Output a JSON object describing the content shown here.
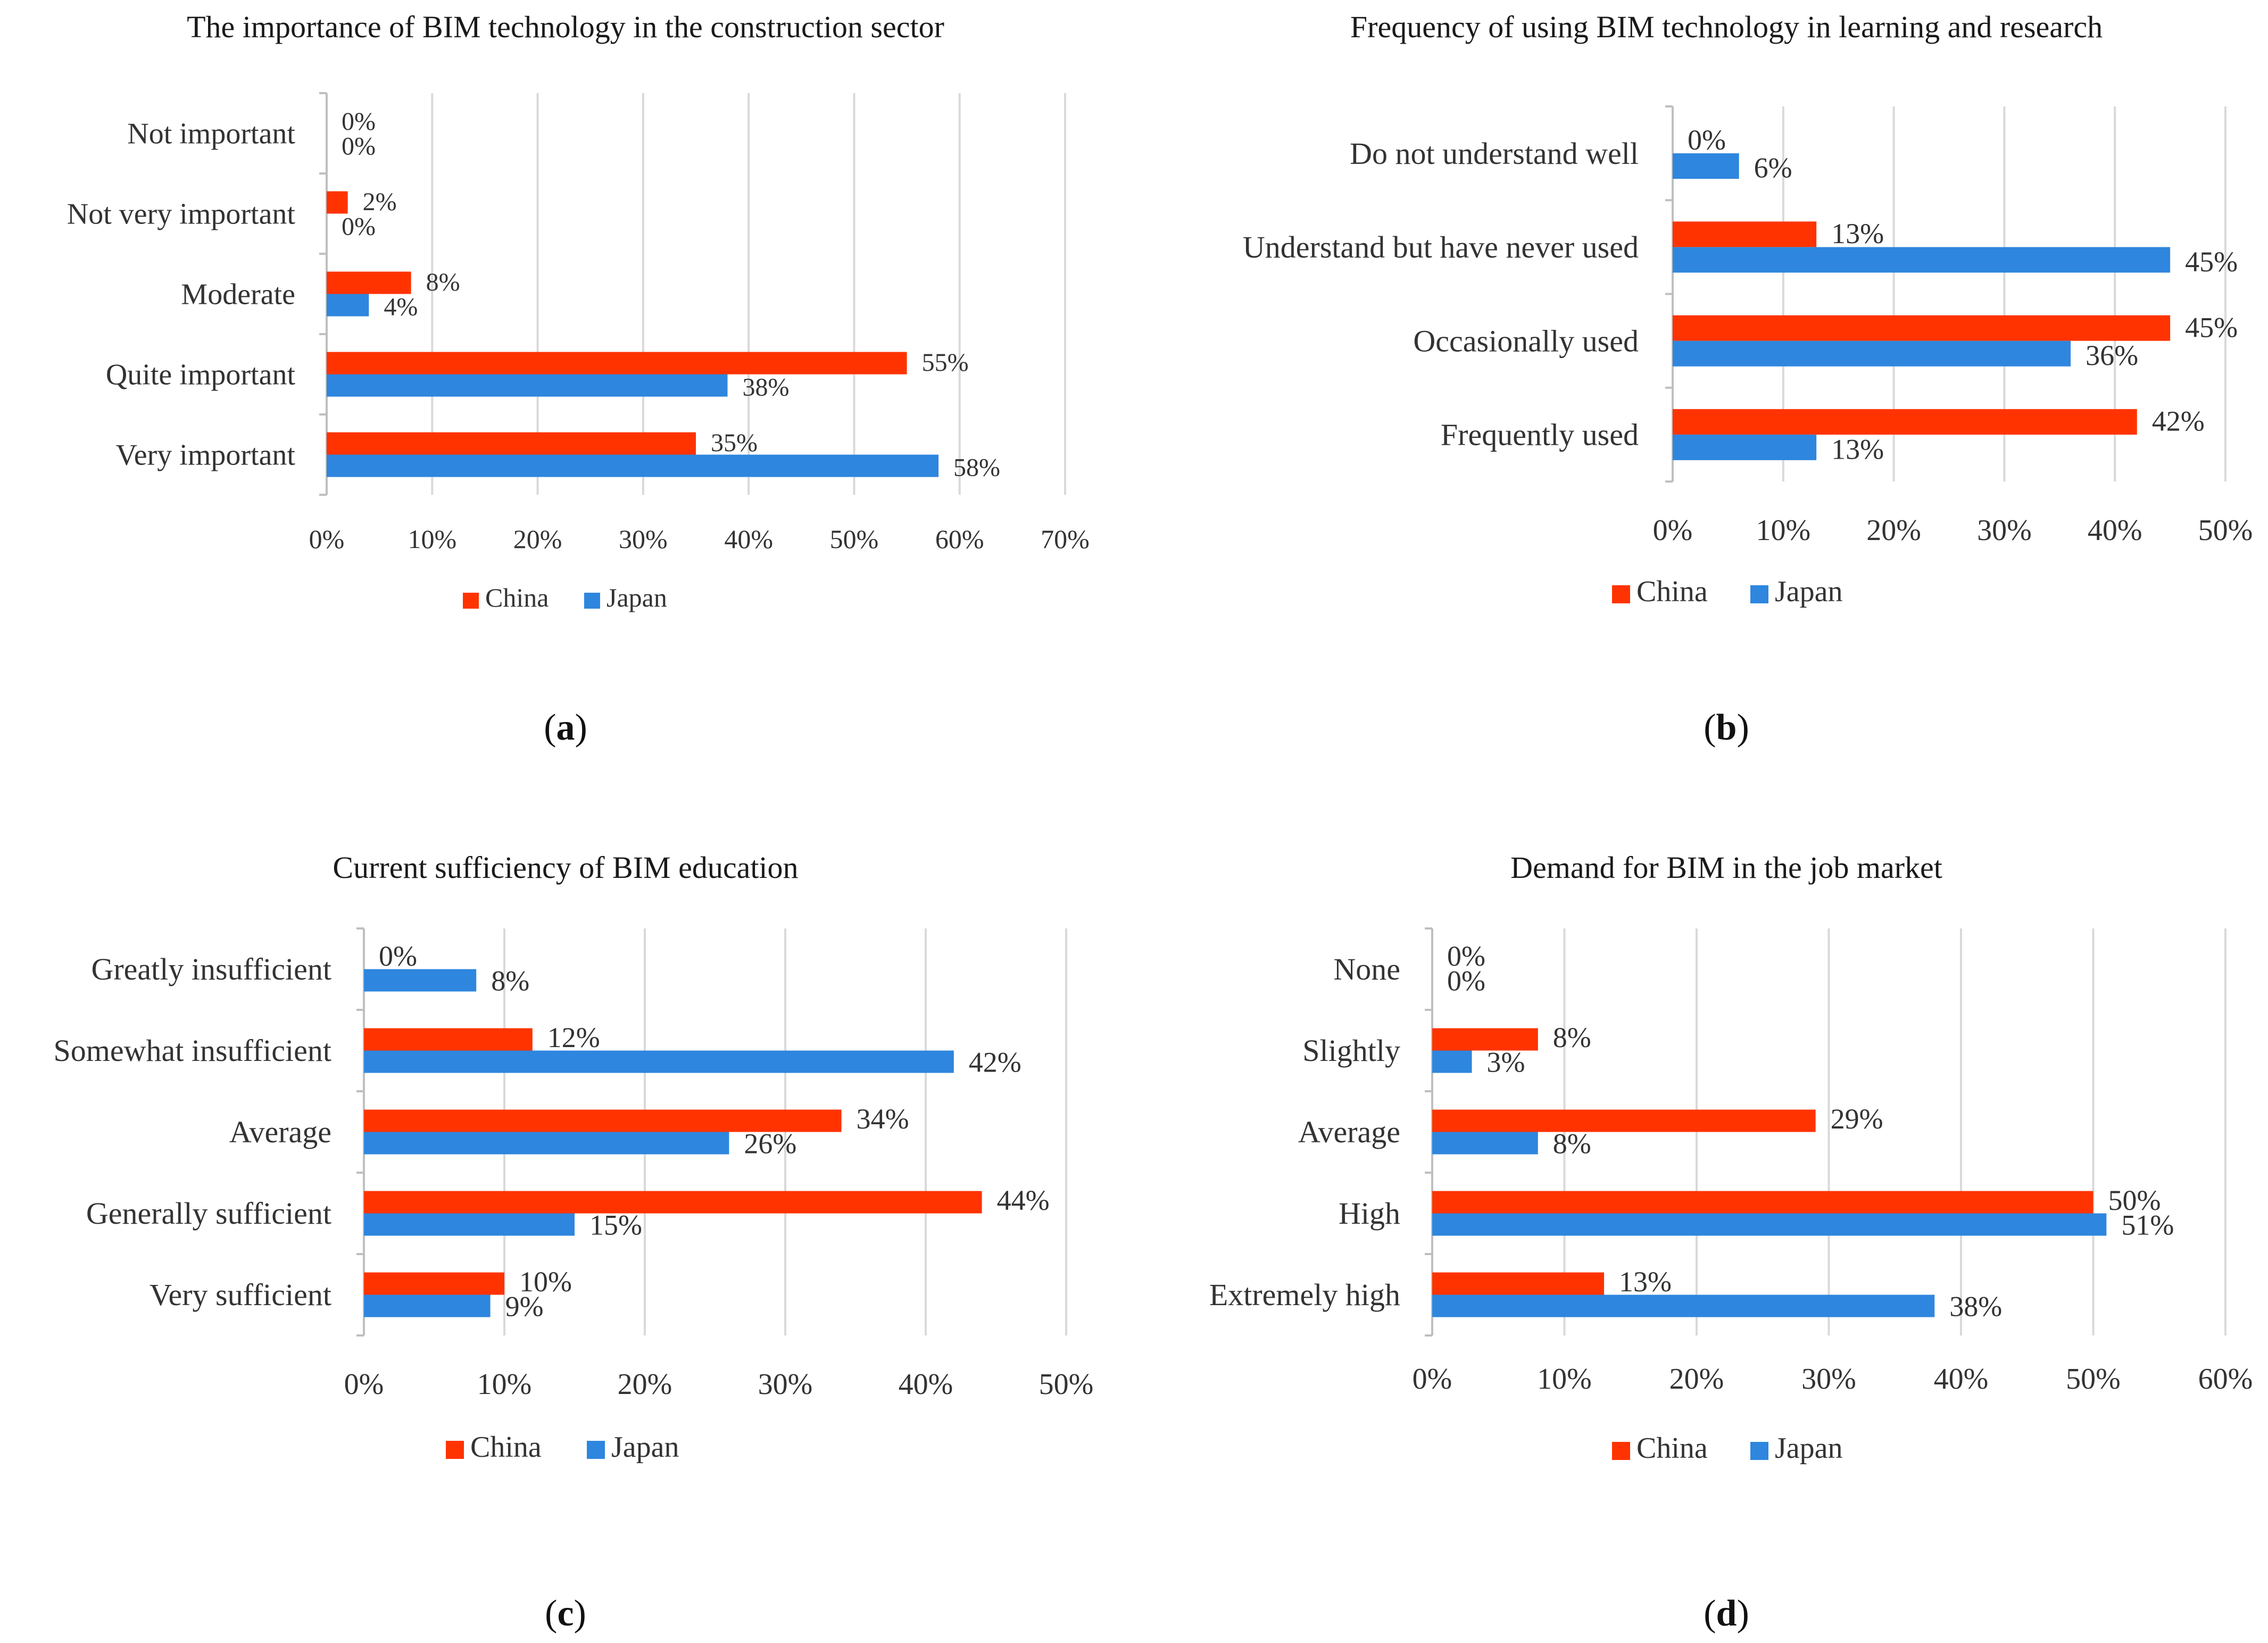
{
  "colors": {
    "china": "#ff3300",
    "japan": "#2e86de"
  },
  "chart_data": [
    {
      "id": "a",
      "type": "bar",
      "orientation": "horizontal",
      "title": "The importance of BIM technology in the construction sector",
      "caption": "a",
      "categories": [
        "Not important",
        "Not very important",
        "Moderate",
        "Quite important",
        "Very important"
      ],
      "series": [
        {
          "name": "China",
          "values": [
            0,
            2,
            8,
            55,
            35
          ]
        },
        {
          "name": "Japan",
          "values": [
            0,
            0,
            4,
            38,
            58
          ]
        }
      ],
      "xlim": [
        0,
        70
      ],
      "xticks": [
        0,
        10,
        20,
        30,
        40,
        50,
        60,
        70
      ],
      "tick_format": "%",
      "legend": [
        "China",
        "Japan"
      ],
      "legend_position": "bottom"
    },
    {
      "id": "b",
      "type": "bar",
      "orientation": "horizontal",
      "title": "Frequency of using BIM technology in learning and research",
      "caption": "b",
      "categories": [
        "Do not understand well",
        "Understand but have never used",
        "Occasionally used",
        "Frequently used"
      ],
      "series": [
        {
          "name": "China",
          "values": [
            0,
            13,
            45,
            42
          ]
        },
        {
          "name": "Japan",
          "values": [
            6,
            45,
            36,
            13
          ]
        }
      ],
      "xlim": [
        0,
        50
      ],
      "xticks": [
        0,
        10,
        20,
        30,
        40,
        50
      ],
      "tick_format": "%",
      "legend": [
        "China",
        "Japan"
      ],
      "legend_position": "bottom"
    },
    {
      "id": "c",
      "type": "bar",
      "orientation": "horizontal",
      "title": "Current sufficiency of BIM education",
      "caption": "c",
      "categories": [
        "Greatly insufficient",
        "Somewhat insufficient",
        "Average",
        "Generally sufficient",
        "Very sufficient"
      ],
      "series": [
        {
          "name": "China",
          "values": [
            0,
            12,
            34,
            44,
            10
          ]
        },
        {
          "name": "Japan",
          "values": [
            8,
            42,
            26,
            15,
            9
          ]
        }
      ],
      "xlim": [
        0,
        50
      ],
      "xticks": [
        0,
        10,
        20,
        30,
        40,
        50
      ],
      "tick_format": "%",
      "legend": [
        "China",
        "Japan"
      ],
      "legend_position": "bottom"
    },
    {
      "id": "d",
      "type": "bar",
      "orientation": "horizontal",
      "title": "Demand for BIM in the job market",
      "caption": "d",
      "categories": [
        "None",
        "Slightly",
        "Average",
        "High",
        "Extremely high"
      ],
      "series": [
        {
          "name": "China",
          "values": [
            0,
            8,
            29,
            50,
            13
          ]
        },
        {
          "name": "Japan",
          "values": [
            0,
            3,
            8,
            51,
            38
          ]
        }
      ],
      "xlim": [
        0,
        60
      ],
      "xticks": [
        0,
        10,
        20,
        30,
        40,
        50,
        60
      ],
      "tick_format": "%",
      "legend": [
        "China",
        "Japan"
      ],
      "legend_position": "bottom"
    }
  ]
}
